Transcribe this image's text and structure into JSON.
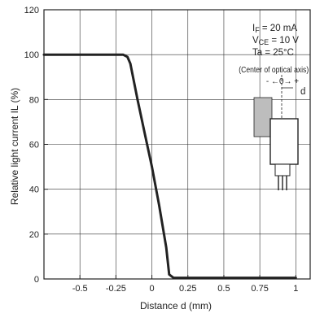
{
  "chart_data": {
    "type": "line",
    "title": "",
    "xlabel": "Distance d (mm)",
    "ylabel": "Relative light current IL (%)",
    "xlim": [
      -0.75,
      1.1
    ],
    "ylim": [
      0,
      120
    ],
    "x_ticks": [
      -0.5,
      -0.25,
      0,
      0.25,
      0.5,
      0.75,
      1
    ],
    "x_tick_labels": [
      "-0.5",
      "-0.25",
      "0",
      "0.25",
      "0.5",
      "0.75",
      "1"
    ],
    "y_ticks": [
      0,
      20,
      40,
      60,
      80,
      100,
      120
    ],
    "y_tick_labels": [
      "0",
      "20",
      "40",
      "60",
      "80",
      "100",
      "120"
    ],
    "grid": true,
    "series": [
      {
        "x": [
          -0.75,
          -0.2,
          -0.17,
          -0.15,
          -0.1,
          -0.05,
          0,
          0.05,
          0.1,
          0.12,
          0.15,
          1.0
        ],
        "y": [
          100,
          100,
          99,
          96,
          80,
          65,
          50,
          33,
          14,
          2,
          0.5,
          0.5
        ]
      }
    ],
    "annotations": {
      "condition_lines": [
        {
          "main": "I",
          "sub": "F",
          "rest": " = 20 mA"
        },
        {
          "main": "V",
          "sub": "CE",
          "rest": " = 10 V"
        },
        {
          "main": "Ta = 25°C",
          "sub": "",
          "rest": ""
        }
      ],
      "axis_note": "(Center of optical axis)",
      "zero_marker": "- ←0→ +",
      "d_label": "d"
    }
  }
}
